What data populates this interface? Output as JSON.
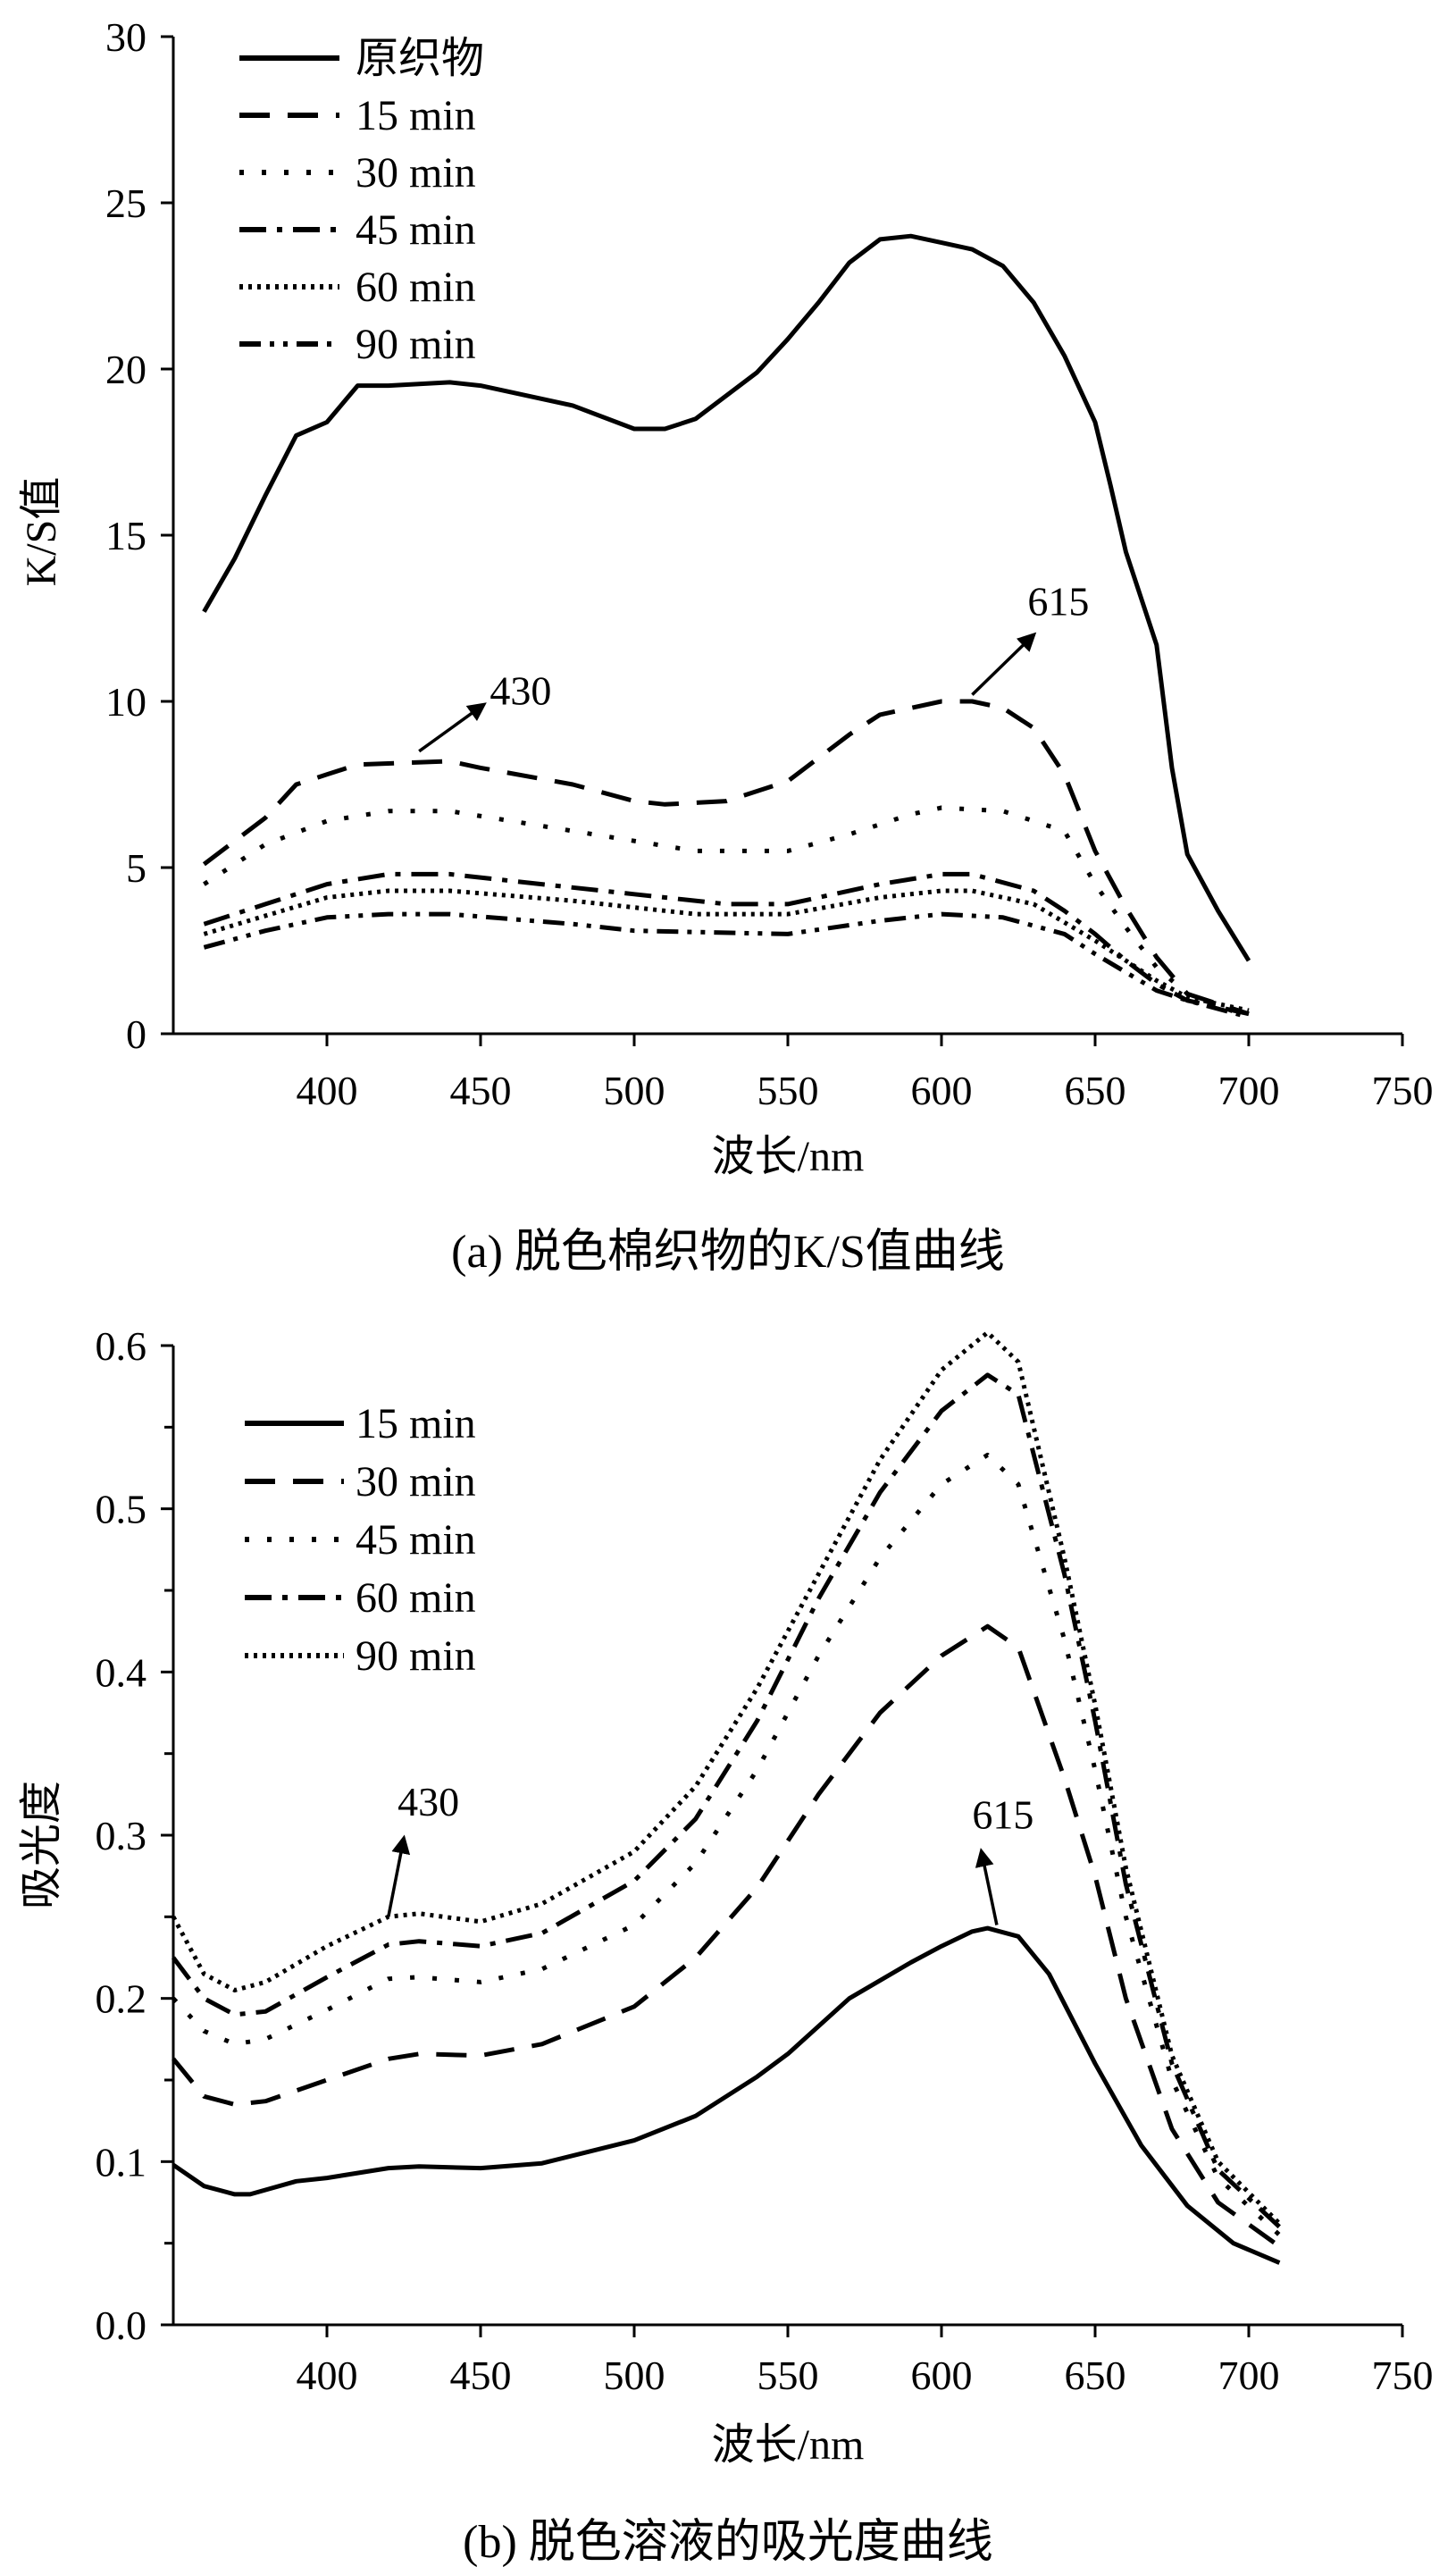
{
  "chart_data": [
    {
      "type": "line",
      "title": "",
      "caption": "(a)  脱色棉织物的K/S值曲线",
      "xlabel": "波长/nm",
      "ylabel": "K/S值",
      "xlim": [
        350,
        750
      ],
      "ylim": [
        0,
        30
      ],
      "xticks": [
        400,
        450,
        500,
        550,
        600,
        650,
        700,
        750
      ],
      "yticks": [
        0,
        5,
        10,
        15,
        20,
        25,
        30
      ],
      "legend_position": "top-left",
      "series": [
        {
          "name": "原织物",
          "style": "solid",
          "x": [
            360,
            370,
            380,
            390,
            400,
            410,
            420,
            440,
            450,
            480,
            500,
            510,
            520,
            540,
            550,
            560,
            570,
            580,
            590,
            600,
            610,
            620,
            630,
            640,
            650,
            655,
            660,
            670,
            675,
            680,
            690,
            700
          ],
          "y": [
            12.7,
            14.3,
            16.2,
            18.0,
            18.4,
            19.5,
            19.5,
            19.6,
            19.5,
            18.9,
            18.2,
            18.2,
            18.5,
            19.9,
            20.9,
            22.0,
            23.2,
            23.9,
            24.0,
            23.8,
            23.6,
            23.1,
            22.0,
            20.4,
            18.4,
            16.5,
            14.5,
            11.7,
            8.0,
            5.4,
            3.7,
            2.2
          ]
        },
        {
          "name": "15 min",
          "style": "dash",
          "x": [
            360,
            380,
            390,
            400,
            410,
            440,
            450,
            480,
            500,
            510,
            530,
            550,
            570,
            580,
            600,
            610,
            620,
            630,
            640,
            650,
            660,
            670,
            680,
            690,
            700
          ],
          "y": [
            5.1,
            6.5,
            7.5,
            7.8,
            8.1,
            8.2,
            8.0,
            7.5,
            7.0,
            6.9,
            7.0,
            7.6,
            9.0,
            9.6,
            10.0,
            10.0,
            9.8,
            9.2,
            7.8,
            5.5,
            3.8,
            2.3,
            1.2,
            0.9,
            0.6
          ]
        },
        {
          "name": "30 min",
          "style": "dot",
          "x": [
            360,
            380,
            400,
            420,
            440,
            460,
            500,
            520,
            550,
            570,
            590,
            600,
            620,
            640,
            650,
            660,
            670,
            680,
            700
          ],
          "y": [
            4.5,
            5.7,
            6.4,
            6.7,
            6.7,
            6.4,
            5.8,
            5.5,
            5.5,
            6.0,
            6.6,
            6.8,
            6.7,
            6.1,
            4.5,
            3.2,
            2.0,
            1.2,
            0.5
          ]
        },
        {
          "name": "45 min",
          "style": "dashdot",
          "x": [
            360,
            380,
            400,
            420,
            440,
            460,
            500,
            530,
            550,
            580,
            600,
            610,
            630,
            640,
            650,
            660,
            670,
            680,
            700
          ],
          "y": [
            3.3,
            3.9,
            4.5,
            4.8,
            4.8,
            4.6,
            4.2,
            3.9,
            3.9,
            4.5,
            4.8,
            4.8,
            4.3,
            3.7,
            3.0,
            2.2,
            1.5,
            1.0,
            0.6
          ]
        },
        {
          "name": "60 min",
          "style": "finedot",
          "x": [
            360,
            400,
            420,
            440,
            480,
            520,
            550,
            580,
            600,
            610,
            630,
            650,
            670,
            680,
            700
          ],
          "y": [
            3.0,
            4.1,
            4.3,
            4.3,
            4.0,
            3.6,
            3.6,
            4.1,
            4.3,
            4.3,
            3.9,
            2.8,
            1.6,
            1.1,
            0.7
          ]
        },
        {
          "name": "90 min",
          "style": "dashdotdot",
          "x": [
            360,
            380,
            400,
            420,
            440,
            480,
            500,
            550,
            580,
            600,
            620,
            640,
            650,
            670,
            680,
            700
          ],
          "y": [
            2.6,
            3.1,
            3.5,
            3.6,
            3.6,
            3.3,
            3.1,
            3.0,
            3.4,
            3.6,
            3.5,
            3.0,
            2.4,
            1.3,
            1.0,
            0.5
          ]
        }
      ],
      "annotations": [
        {
          "text": "430",
          "from": [
            430,
            8.5
          ],
          "to": [
            451,
            9.9
          ],
          "label_at": [
            453,
            9.9
          ]
        },
        {
          "text": "615",
          "from": [
            610,
            10.2
          ],
          "to": [
            630,
            12.0
          ],
          "label_at": [
            628,
            12.6
          ]
        }
      ]
    },
    {
      "type": "line",
      "title": "",
      "caption": "(b)  脱色溶液的吸光度曲线",
      "xlabel": "波长/nm",
      "ylabel": "吸光度",
      "xlim": [
        350,
        750
      ],
      "ylim": [
        0,
        0.6
      ],
      "xticks": [
        400,
        450,
        500,
        550,
        600,
        650,
        700,
        750
      ],
      "yticks": [
        "0.0",
        "0.1",
        "0.2",
        "0.3",
        "0.4",
        "0.5",
        "0.6"
      ],
      "legend_position": "top-left",
      "series": [
        {
          "name": "15 min",
          "style": "solid",
          "x": [
            350,
            360,
            370,
            375,
            390,
            400,
            420,
            430,
            450,
            470,
            500,
            520,
            540,
            550,
            570,
            590,
            600,
            610,
            615,
            625,
            635,
            650,
            665,
            680,
            695,
            710
          ],
          "y": [
            0.098,
            0.085,
            0.08,
            0.08,
            0.088,
            0.09,
            0.096,
            0.097,
            0.096,
            0.099,
            0.113,
            0.128,
            0.152,
            0.166,
            0.2,
            0.222,
            0.232,
            0.241,
            0.243,
            0.238,
            0.215,
            0.16,
            0.11,
            0.073,
            0.05,
            0.038
          ]
        },
        {
          "name": "30 min",
          "style": "dash",
          "x": [
            350,
            360,
            370,
            380,
            400,
            420,
            430,
            450,
            470,
            500,
            520,
            540,
            560,
            580,
            600,
            615,
            625,
            640,
            650,
            660,
            675,
            690,
            710
          ],
          "y": [
            0.163,
            0.14,
            0.135,
            0.137,
            0.15,
            0.163,
            0.166,
            0.165,
            0.172,
            0.195,
            0.225,
            0.268,
            0.325,
            0.375,
            0.41,
            0.428,
            0.415,
            0.335,
            0.275,
            0.2,
            0.12,
            0.075,
            0.048
          ]
        },
        {
          "name": "45 min",
          "style": "dot",
          "x": [
            350,
            360,
            370,
            380,
            400,
            420,
            430,
            450,
            470,
            500,
            520,
            540,
            560,
            580,
            600,
            615,
            625,
            640,
            650,
            660,
            675,
            690,
            710
          ],
          "y": [
            0.2,
            0.18,
            0.172,
            0.175,
            0.193,
            0.212,
            0.213,
            0.21,
            0.218,
            0.245,
            0.283,
            0.34,
            0.41,
            0.47,
            0.515,
            0.533,
            0.515,
            0.42,
            0.34,
            0.25,
            0.15,
            0.09,
            0.055
          ]
        },
        {
          "name": "60 min",
          "style": "dashdot",
          "x": [
            350,
            360,
            370,
            380,
            400,
            420,
            430,
            450,
            470,
            500,
            520,
            540,
            560,
            580,
            600,
            615,
            625,
            640,
            650,
            660,
            675,
            690,
            710
          ],
          "y": [
            0.225,
            0.2,
            0.19,
            0.192,
            0.213,
            0.233,
            0.235,
            0.232,
            0.24,
            0.272,
            0.31,
            0.37,
            0.445,
            0.51,
            0.56,
            0.582,
            0.57,
            0.46,
            0.37,
            0.27,
            0.16,
            0.095,
            0.06
          ]
        },
        {
          "name": "90 min",
          "style": "finedot",
          "x": [
            350,
            360,
            370,
            380,
            400,
            420,
            430,
            450,
            470,
            500,
            520,
            540,
            560,
            580,
            600,
            615,
            625,
            640,
            650,
            660,
            675,
            690,
            710
          ],
          "y": [
            0.25,
            0.215,
            0.205,
            0.21,
            0.232,
            0.25,
            0.252,
            0.247,
            0.258,
            0.29,
            0.33,
            0.39,
            0.46,
            0.53,
            0.585,
            0.608,
            0.59,
            0.47,
            0.38,
            0.28,
            0.165,
            0.1,
            0.062
          ]
        }
      ],
      "annotations": [
        {
          "text": "430",
          "from": [
            420,
            0.25
          ],
          "to": [
            425,
            0.298
          ],
          "label_at": [
            423,
            0.312
          ]
        },
        {
          "text": "615",
          "from": [
            618,
            0.245
          ],
          "to": [
            613,
            0.29
          ],
          "label_at": [
            610,
            0.304
          ]
        }
      ]
    }
  ]
}
